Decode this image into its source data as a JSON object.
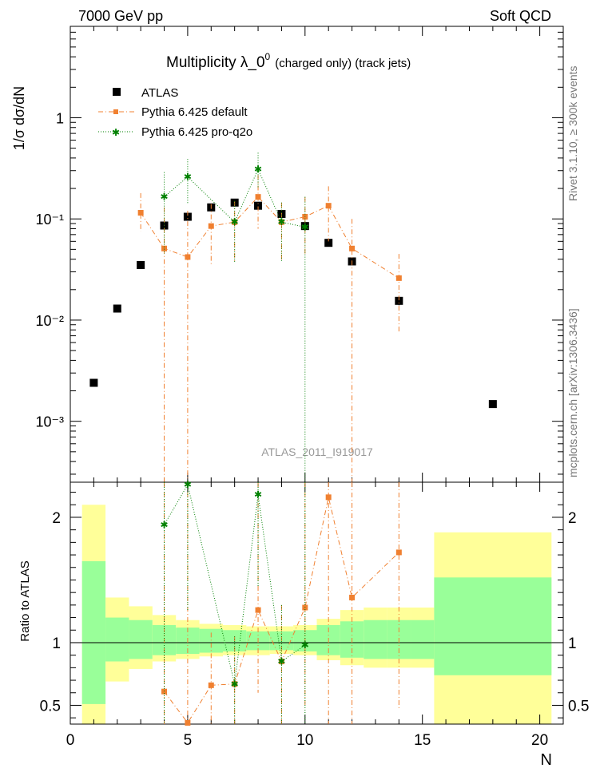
{
  "header": {
    "left": "7000 GeV pp",
    "right": "Soft QCD"
  },
  "side_labels": {
    "rivet": "Rivet 3.1.10, ≥ 300k events",
    "mcplots": "mcplots.cern.ch [arXiv:1306.3436]"
  },
  "chart_data": [
    {
      "type": "scatter",
      "panel": "main",
      "title_main": "Multiplicity  λ_0",
      "title_sup": "0",
      "title_sub": "(charged only) (track jets)",
      "watermark": "ATLAS_2011_I919017",
      "ylabel": "1/σ dσ/dN",
      "yscale": "log",
      "ylim": [
        0.00025,
        8
      ],
      "xlim": [
        0,
        21
      ],
      "y_tick_labels": [
        "10⁻³",
        "10⁻²",
        "10⁻¹",
        "1"
      ],
      "legend_position": "top-left",
      "series": [
        {
          "name": "ATLAS",
          "color": "#000000",
          "marker": "square",
          "x": [
            1,
            2,
            3,
            4,
            5,
            6,
            7,
            8,
            9,
            10,
            11,
            12,
            14,
            18
          ],
          "y": [
            0.0024,
            0.013,
            0.035,
            0.086,
            0.105,
            0.13,
            0.145,
            0.135,
            0.112,
            0.085,
            0.058,
            0.038,
            0.0155,
            0.00148
          ],
          "y_err": [
            0.0002,
            0.001,
            0.002,
            0.004,
            0.005,
            0.006,
            0.006,
            0.006,
            0.005,
            0.004,
            0.004,
            0.003,
            0.0015,
            0.0001
          ]
        },
        {
          "name": "Pythia 6.425 default",
          "color": "#f08030",
          "marker": "square-small",
          "linestyle": "dashdot",
          "x": [
            3,
            4,
            5,
            6,
            7,
            8,
            9,
            10,
            11,
            12,
            14
          ],
          "y": [
            0.115,
            0.051,
            0.042,
            0.085,
            0.093,
            0.165,
            0.093,
            0.105,
            0.135,
            0.051,
            0.026
          ],
          "y_low": [
            0.075,
            1e-05,
            1e-05,
            0.035,
            0.037,
            0.08,
            0.038,
            0.044,
            0.06,
            1e-05,
            0.0075
          ],
          "y_high": [
            0.18,
            0.13,
            0.12,
            0.14,
            0.15,
            0.27,
            0.145,
            0.165,
            0.21,
            0.1,
            0.045
          ]
        },
        {
          "name": "Pythia 6.425 pro-q2o",
          "color": "#008000",
          "marker": "star",
          "linestyle": "dotted",
          "x": [
            4,
            5,
            7,
            8,
            9,
            10
          ],
          "y": [
            0.165,
            0.26,
            0.093,
            0.31,
            0.093,
            0.083
          ],
          "y_low": [
            0.045,
            0.14,
            0.037,
            0.2,
            0.038,
            1e-05
          ],
          "y_high": [
            0.29,
            0.39,
            0.15,
            0.45,
            0.145,
            0.165
          ]
        }
      ]
    },
    {
      "type": "scatter",
      "panel": "ratio",
      "ylabel": "Ratio to ATLAS",
      "xlabel": "N",
      "ylim": [
        0.35,
        2.28
      ],
      "xlim": [
        0,
        21
      ],
      "x_ticks": [
        0,
        5,
        10,
        15,
        20
      ],
      "y_ticks": [
        0.5,
        1,
        2
      ],
      "reference_line": 1,
      "uncertainty_bands": {
        "bins": [
          [
            0.5,
            1.5
          ],
          [
            1.5,
            2.5
          ],
          [
            2.5,
            3.5
          ],
          [
            3.5,
            4.5
          ],
          [
            4.5,
            5.5
          ],
          [
            5.5,
            6.5
          ],
          [
            6.5,
            7.5
          ],
          [
            7.5,
            8.5
          ],
          [
            8.5,
            9.5
          ],
          [
            9.5,
            10.5
          ],
          [
            10.5,
            11.5
          ],
          [
            11.5,
            12.5
          ],
          [
            12.5,
            13.5
          ],
          [
            13.5,
            14.5
          ],
          [
            14.5,
            15.5
          ],
          [
            15.5,
            20.5
          ]
        ],
        "green": [
          [
            0.51,
            1.65
          ],
          [
            0.85,
            1.2
          ],
          [
            0.87,
            1.18
          ],
          [
            0.9,
            1.14
          ],
          [
            0.91,
            1.12
          ],
          [
            0.92,
            1.11
          ],
          [
            0.93,
            1.1
          ],
          [
            0.94,
            1.09
          ],
          [
            0.94,
            1.09
          ],
          [
            0.93,
            1.1
          ],
          [
            0.9,
            1.14
          ],
          [
            0.88,
            1.17
          ],
          [
            0.87,
            1.18
          ],
          [
            0.87,
            1.18
          ],
          [
            0.87,
            1.18
          ],
          [
            0.74,
            1.52
          ]
        ],
        "yellow": [
          [
            0.34,
            2.1
          ],
          [
            0.69,
            1.36
          ],
          [
            0.79,
            1.29
          ],
          [
            0.85,
            1.22
          ],
          [
            0.87,
            1.18
          ],
          [
            0.89,
            1.15
          ],
          [
            0.9,
            1.14
          ],
          [
            0.9,
            1.13
          ],
          [
            0.91,
            1.13
          ],
          [
            0.9,
            1.14
          ],
          [
            0.86,
            1.19
          ],
          [
            0.82,
            1.26
          ],
          [
            0.8,
            1.28
          ],
          [
            0.8,
            1.28
          ],
          [
            0.8,
            1.28
          ],
          [
            0.34,
            1.88
          ]
        ],
        "green_color": "#99ff99",
        "yellow_color": "#ffff99"
      },
      "series": [
        {
          "name": "Pythia 6.425 default",
          "color": "#f08030",
          "x": [
            4,
            5,
            6,
            7,
            8,
            9,
            10,
            11,
            12,
            14
          ],
          "y": [
            0.61,
            0.36,
            0.66,
            0.67,
            1.26,
            0.85,
            1.28,
            2.16,
            1.36,
            1.72
          ],
          "y_low": [
            0.3,
            0.3,
            0.3,
            0.3,
            0.6,
            0.35,
            0.5,
            0.3,
            0.3,
            0.47
          ],
          "y_high": [
            2.3,
            2.3,
            1.08,
            1.05,
            2.3,
            1.3,
            2.3,
            2.3,
            2.3,
            2.3
          ]
        },
        {
          "name": "Pythia 6.425 pro-q2o",
          "color": "#008000",
          "x": [
            4,
            5,
            7,
            8,
            9,
            10
          ],
          "y": [
            1.94,
            2.26,
            0.67,
            2.18,
            0.85,
            0.98
          ],
          "y_low": [
            0.3,
            1.25,
            0.3,
            1.45,
            0.35,
            0.3
          ],
          "y_high": [
            2.3,
            2.3,
            1.05,
            2.3,
            1.3,
            2.3
          ]
        }
      ]
    }
  ]
}
